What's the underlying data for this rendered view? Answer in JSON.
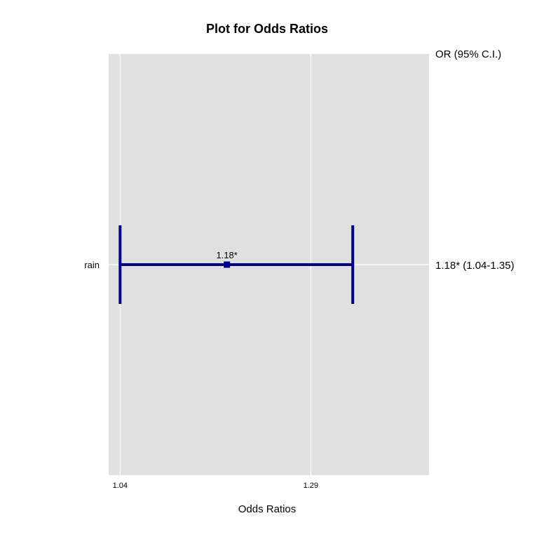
{
  "chart_data": {
    "type": "forest",
    "title": "Plot for Odds Ratios",
    "xlabel": "Odds Ratios",
    "ylabel": "",
    "side_header": "OR (95% C.I.)",
    "x_ticks": [
      1.04,
      1.29
    ],
    "x_tick_labels": [
      "1.04",
      "1.29"
    ],
    "xlim": [
      1.025,
      1.445
    ],
    "grid": true,
    "colors": {
      "panel": "#e0e0e0",
      "grid": "#ffffff",
      "mark": "#00008b"
    },
    "rows": [
      {
        "label": "rain",
        "or": 1.18,
        "lower": 1.04,
        "upper": 1.345,
        "point_label": "1.18*",
        "side_label": "1.18* (1.04-1.35)"
      }
    ]
  }
}
